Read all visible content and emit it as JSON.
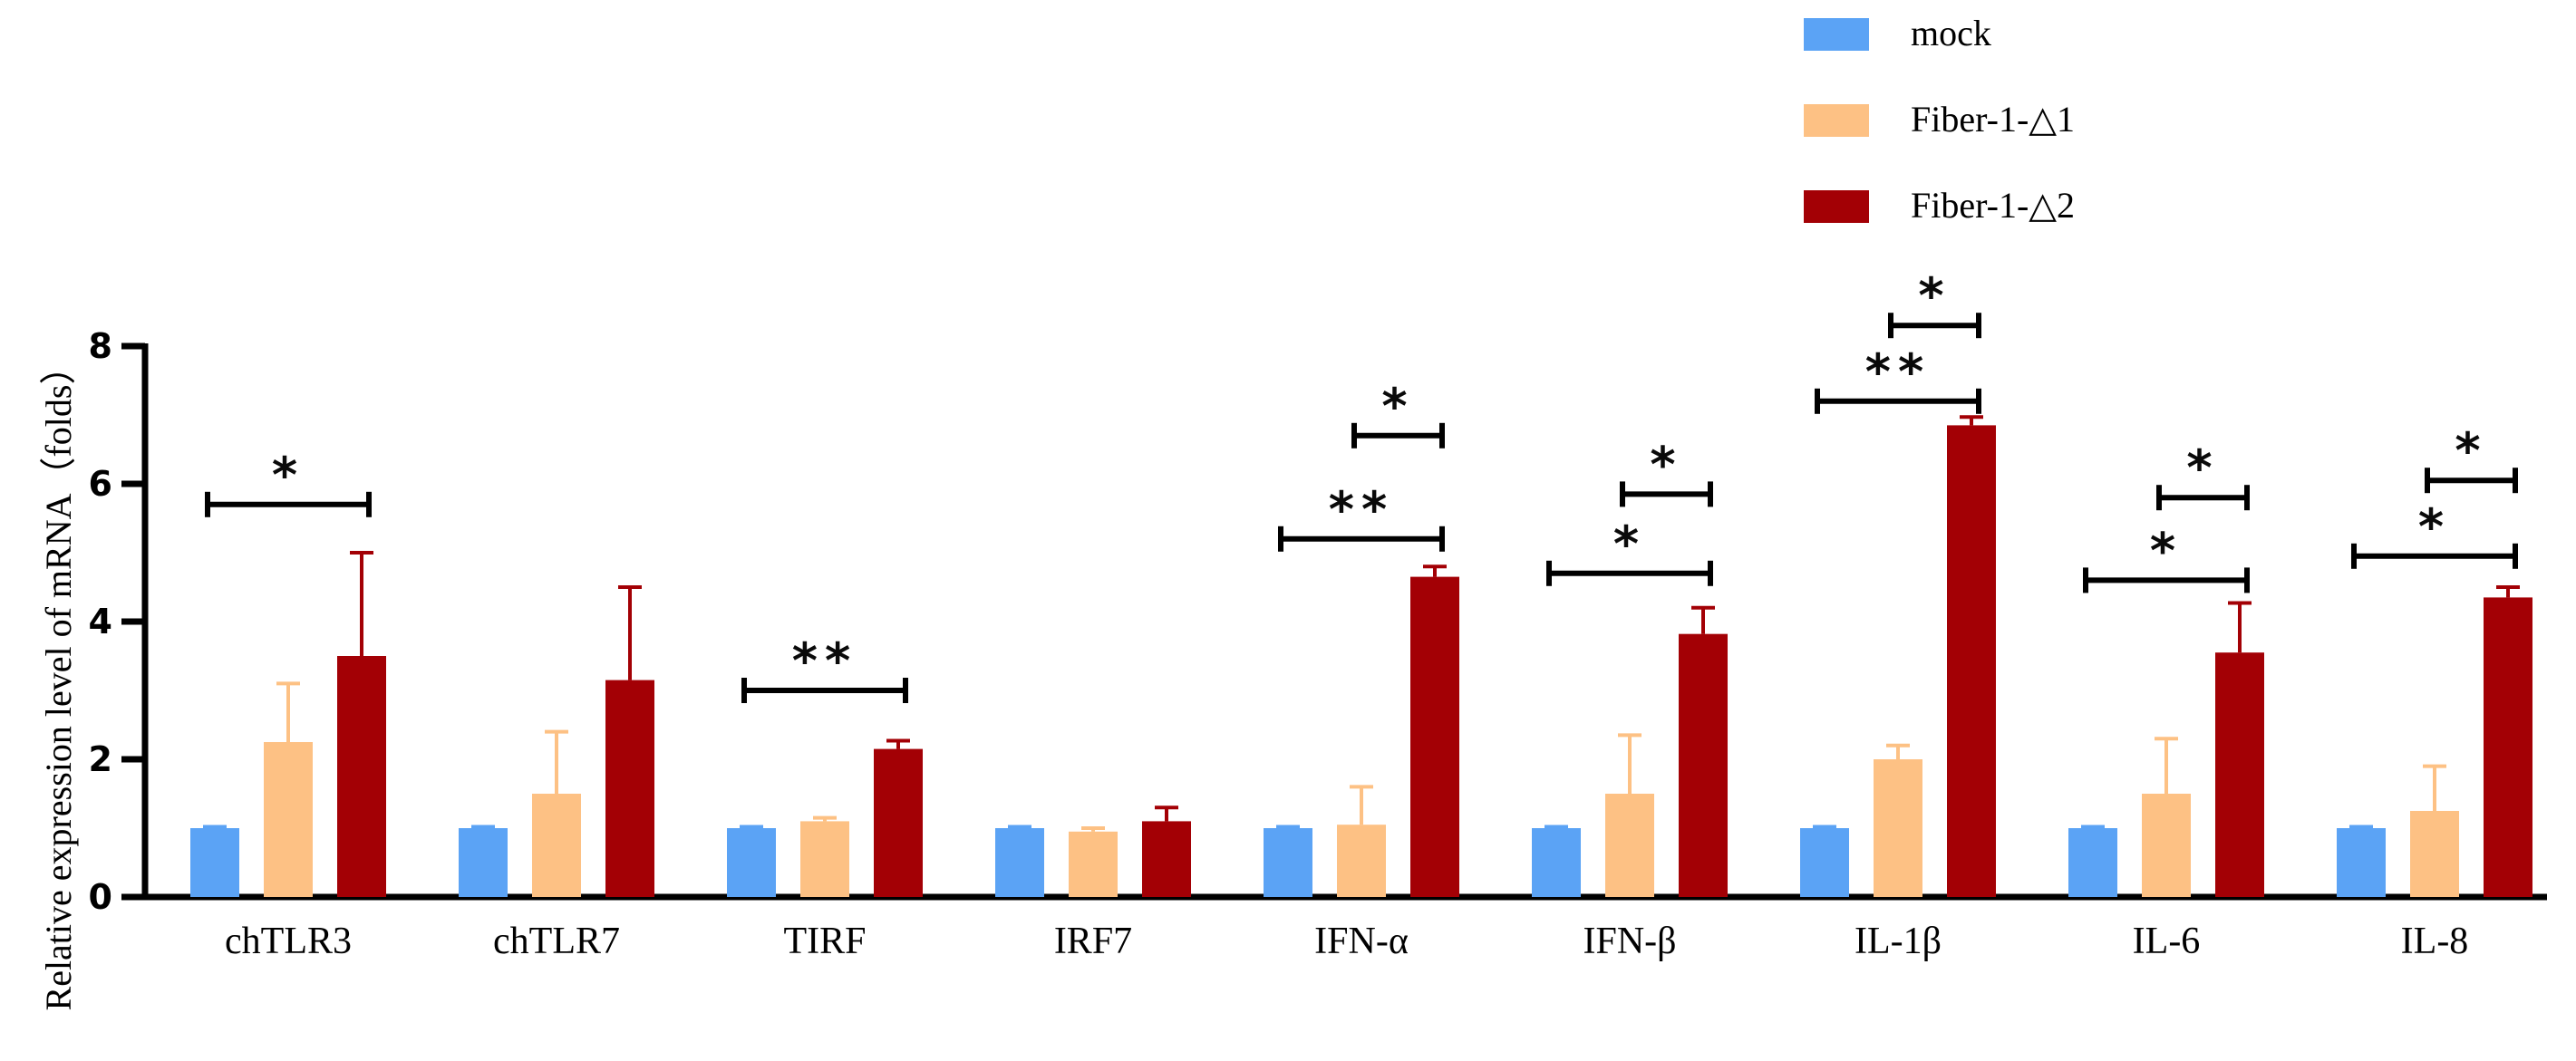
{
  "chart_data": {
    "type": "bar",
    "title": "",
    "xlabel": "",
    "ylabel": "Relative expression level of mRNA（folds）",
    "ylim": [
      0,
      8
    ],
    "yticks": [
      0,
      2,
      4,
      6,
      8
    ],
    "categories": [
      "chTLR3",
      "chTLR7",
      "TIRF",
      "IRF7",
      "IFN-α",
      "IFN-β",
      "IL-1β",
      "IL-6",
      "IL-8"
    ],
    "series": [
      {
        "name": "mock",
        "color": "#5ba3f5",
        "values": [
          1.0,
          1.0,
          1.0,
          1.0,
          1.0,
          1.0,
          1.0,
          1.0,
          1.0
        ],
        "errors": [
          0.02,
          0.02,
          0.02,
          0.02,
          0.02,
          0.02,
          0.02,
          0.02,
          0.02
        ]
      },
      {
        "name": "Fiber-1-△1",
        "color": "#fdc184",
        "values": [
          2.25,
          1.5,
          1.1,
          0.95,
          1.05,
          1.5,
          2.0,
          1.5,
          1.25
        ],
        "errors": [
          0.85,
          0.9,
          0.05,
          0.05,
          0.55,
          0.85,
          0.2,
          0.8,
          0.65
        ]
      },
      {
        "name": "Fiber-1-△2",
        "color": "#a30005",
        "values": [
          3.5,
          3.15,
          2.15,
          1.1,
          4.65,
          3.82,
          6.85,
          3.55,
          4.35
        ],
        "errors": [
          1.5,
          1.35,
          0.12,
          0.2,
          0.15,
          0.38,
          0.12,
          0.72,
          0.15
        ]
      }
    ],
    "significance": [
      {
        "category": 0,
        "from": 0,
        "to": 2,
        "y": 5.7,
        "label": "*"
      },
      {
        "category": 2,
        "from": 0,
        "to": 2,
        "y": 3.0,
        "label": "**"
      },
      {
        "category": 4,
        "from": 0,
        "to": 2,
        "y": 5.2,
        "label": "**"
      },
      {
        "category": 4,
        "from": 1,
        "to": 2,
        "y": 6.7,
        "label": "*"
      },
      {
        "category": 5,
        "from": 0,
        "to": 2,
        "y": 4.7,
        "label": "*"
      },
      {
        "category": 5,
        "from": 1,
        "to": 2,
        "y": 5.85,
        "label": "*"
      },
      {
        "category": 6,
        "from": 0,
        "to": 2,
        "y": 7.2,
        "label": "**"
      },
      {
        "category": 6,
        "from": 1,
        "to": 2,
        "y": 8.3,
        "label": "*"
      },
      {
        "category": 7,
        "from": 0,
        "to": 2,
        "y": 4.6,
        "label": "*"
      },
      {
        "category": 7,
        "from": 1,
        "to": 2,
        "y": 5.8,
        "label": "*"
      },
      {
        "category": 8,
        "from": 0,
        "to": 2,
        "y": 4.95,
        "label": "*"
      },
      {
        "category": 8,
        "from": 1,
        "to": 2,
        "y": 6.05,
        "label": "*"
      }
    ],
    "legend": {
      "position": "top-right"
    }
  }
}
